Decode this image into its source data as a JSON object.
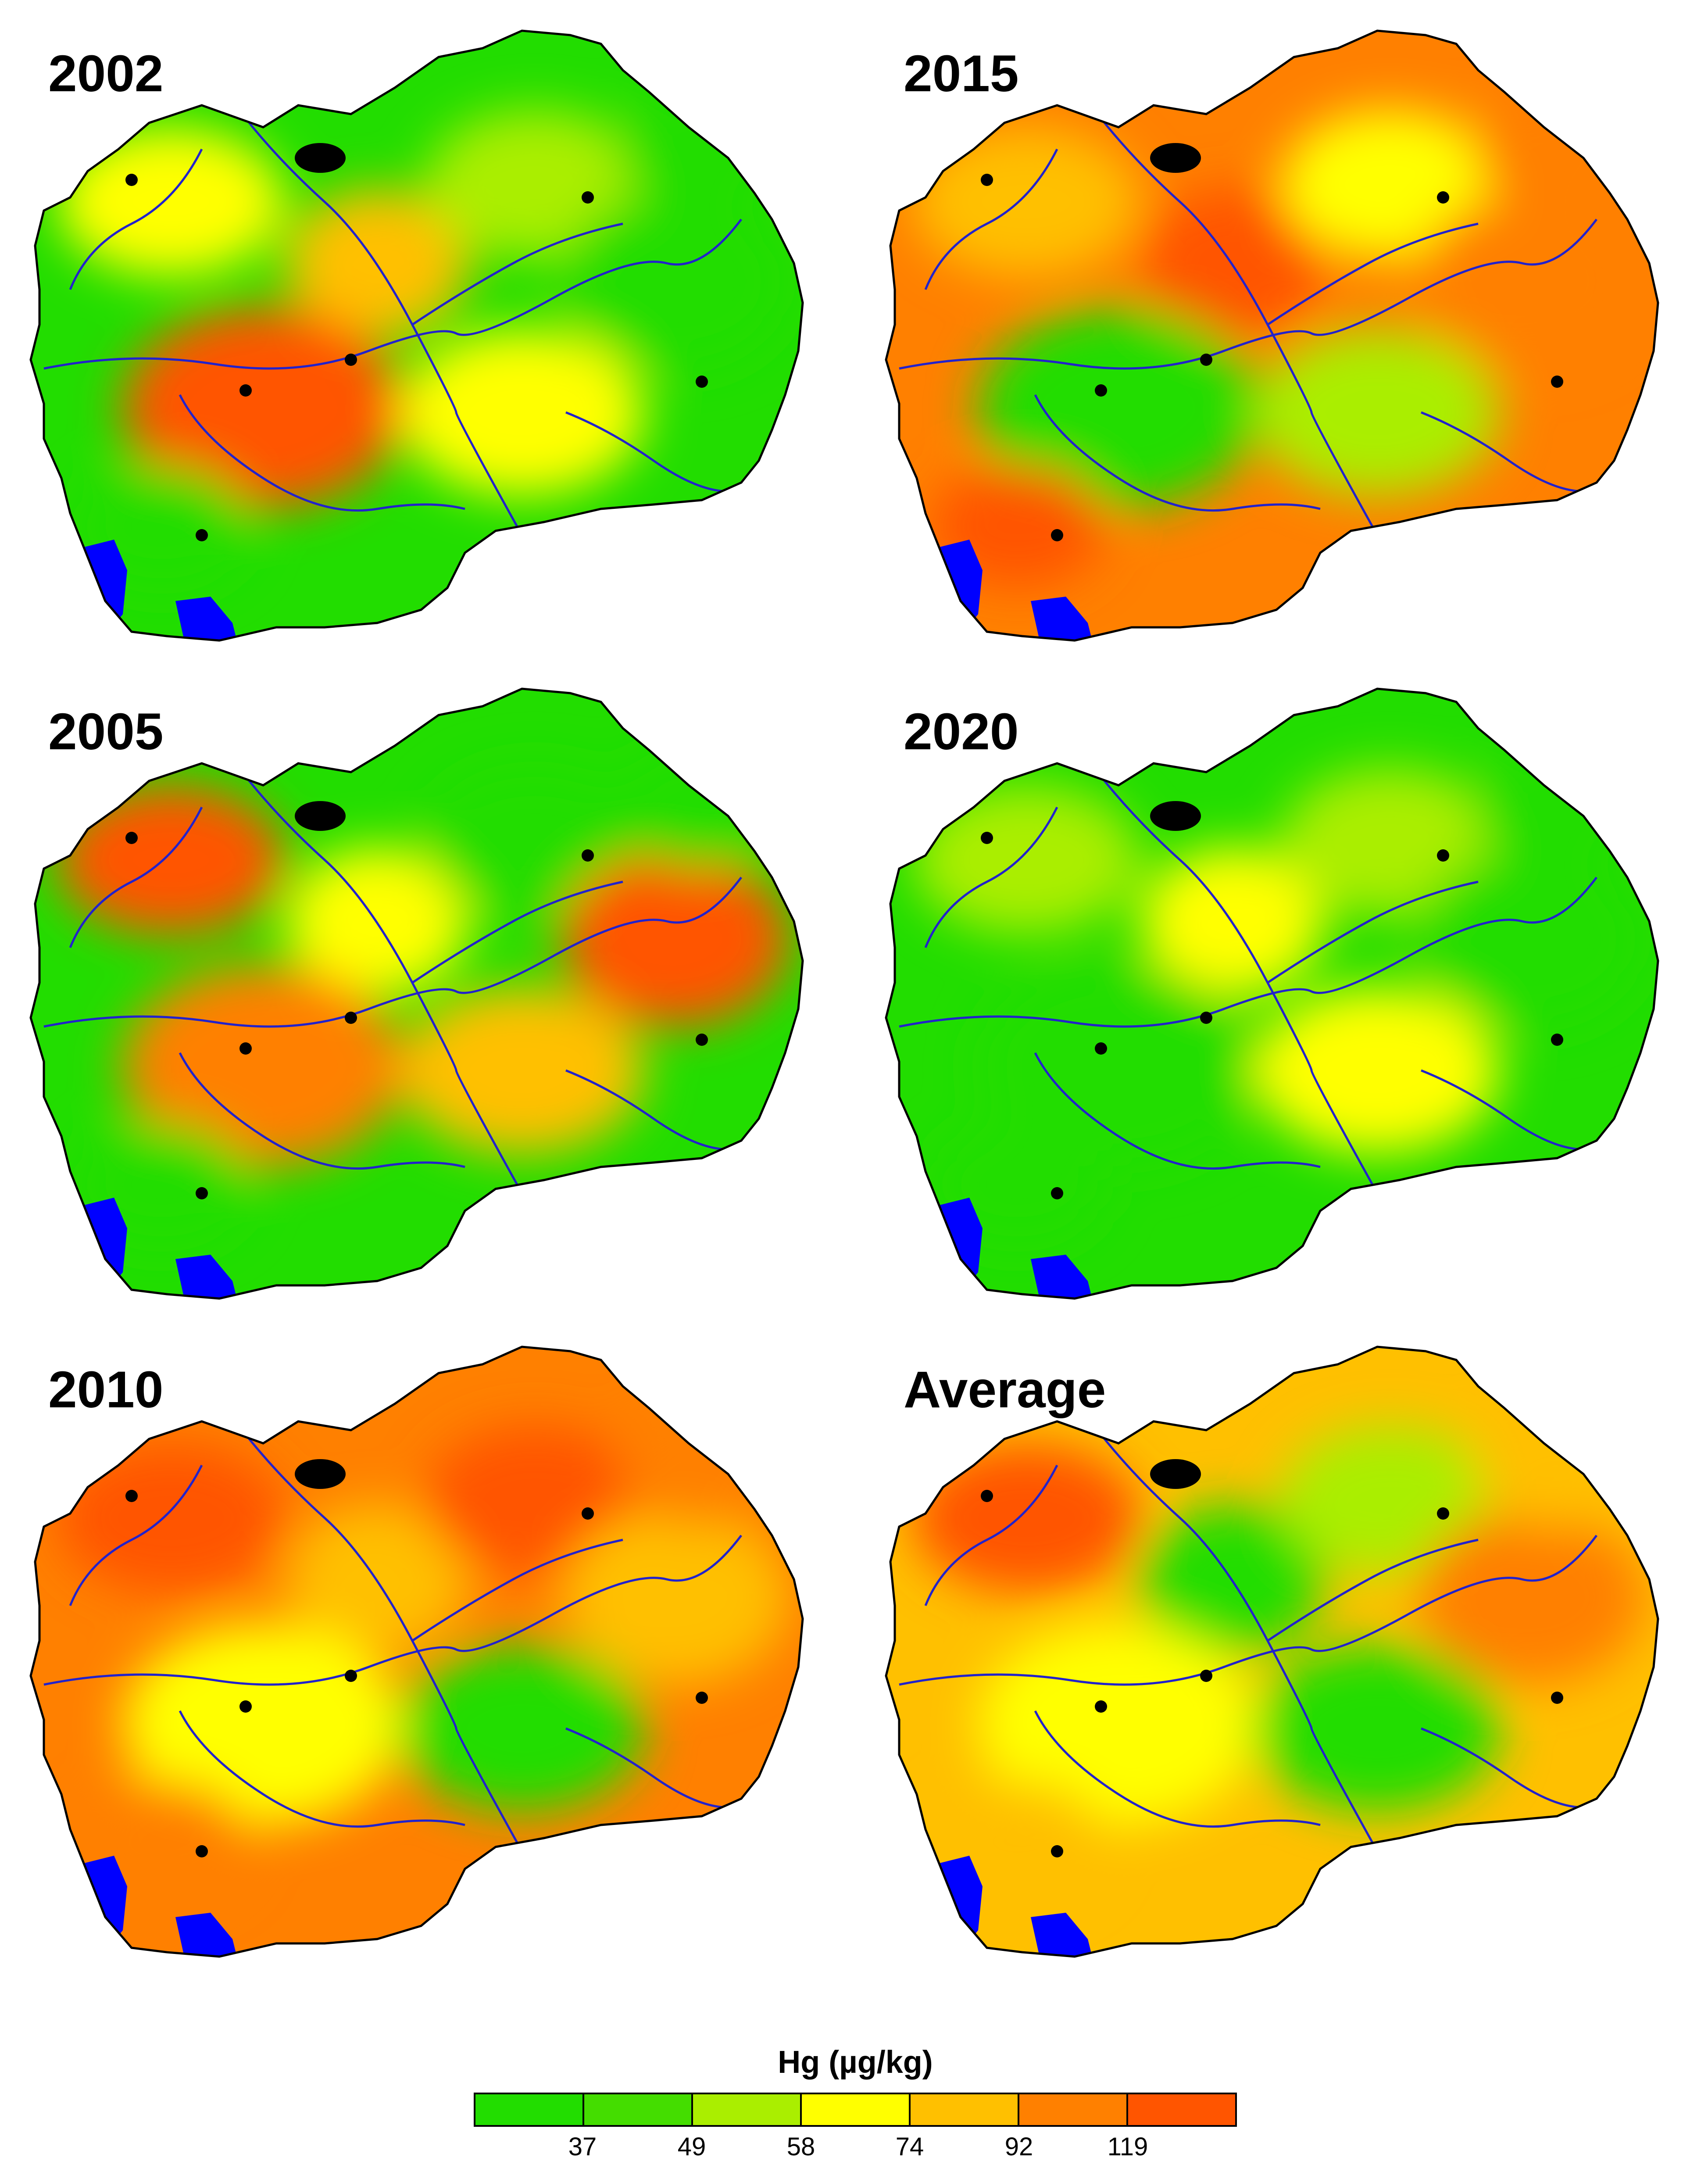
{
  "panels": [
    {
      "title": "2002",
      "palette": [
        "#22dd00",
        "#ffff00",
        "#ffc000",
        "#ff5500",
        "#aaee00",
        "#22dd00",
        "#ffff00",
        "#22dd00"
      ]
    },
    {
      "title": "2015",
      "palette": [
        "#ff8000",
        "#ffc000",
        "#ff5500",
        "#22dd00",
        "#ffff00",
        "#ff8000",
        "#aaee00",
        "#ff5500"
      ]
    },
    {
      "title": "2005",
      "palette": [
        "#22dd00",
        "#ff5500",
        "#ffff00",
        "#ff8000",
        "#22dd00",
        "#ff5500",
        "#ffc000",
        "#22dd00"
      ]
    },
    {
      "title": "2020",
      "palette": [
        "#22dd00",
        "#aaee00",
        "#ffff00",
        "#22dd00",
        "#aaee00",
        "#22dd00",
        "#ffff00",
        "#22dd00"
      ]
    },
    {
      "title": "2010",
      "palette": [
        "#ff8000",
        "#ff5500",
        "#ffc000",
        "#ffff00",
        "#ff5500",
        "#ffc000",
        "#22dd00",
        "#ff8000"
      ]
    },
    {
      "title": "Average",
      "palette": [
        "#ffc000",
        "#ff5500",
        "#22dd00",
        "#ffff00",
        "#aaee00",
        "#ff8000",
        "#22dd00",
        "#ffc000"
      ]
    }
  ],
  "colors": {
    "lake": "#0000ff",
    "river": "#2222cc",
    "city": "#000000",
    "border": "#000000"
  },
  "legend": {
    "title": "Hg (µg/kg)",
    "colors": [
      "#22dd00",
      "#44dd00",
      "#aaee00",
      "#ffff00",
      "#ffc000",
      "#ff8000",
      "#ff5500"
    ],
    "ticks": [
      "37",
      "49",
      "58",
      "74",
      "92",
      "119"
    ]
  }
}
